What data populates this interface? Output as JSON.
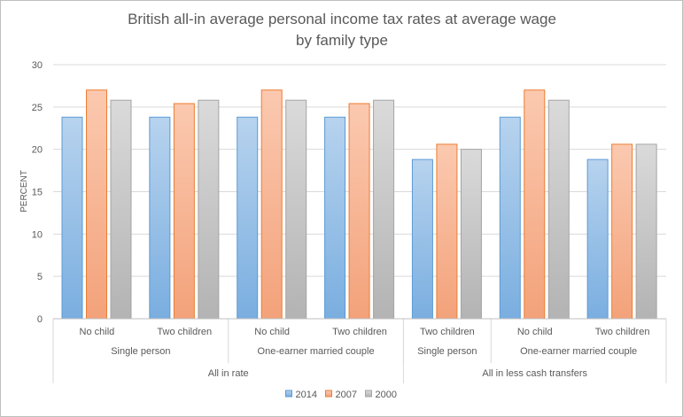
{
  "chart_data": {
    "type": "bar",
    "title": "British all-in average personal income tax rates at average wage",
    "subtitle": "by family type",
    "xlabel": "",
    "ylabel": "PERCENT",
    "ylim": [
      0,
      30
    ],
    "yticks": [
      0,
      5,
      10,
      15,
      20,
      25,
      30
    ],
    "grid": true,
    "legend_position": "bottom",
    "categories": [
      "No child",
      "Two children",
      "No child",
      "Two children",
      "Two children",
      "No child",
      "Two children"
    ],
    "category_groups": [
      {
        "label": "Single person",
        "span": 2
      },
      {
        "label": "One-earner married couple",
        "span": 2
      },
      {
        "label": "Single person",
        "span": 1
      },
      {
        "label": "One-earner married couple",
        "span": 2
      }
    ],
    "category_supergroups": [
      {
        "label": "All in rate",
        "span": 4
      },
      {
        "label": "All in less cash transfers",
        "span": 3
      }
    ],
    "series": [
      {
        "name": "2014",
        "color": "#9dc3e6",
        "values": [
          23.8,
          23.8,
          23.8,
          23.8,
          18.8,
          23.8,
          18.8
        ]
      },
      {
        "name": "2007",
        "color": "#f8b99b",
        "values": [
          27.0,
          25.4,
          27.0,
          25.4,
          20.6,
          27.0,
          20.6
        ]
      },
      {
        "name": "2000",
        "color": "#c9c9c9",
        "values": [
          25.8,
          25.8,
          25.8,
          25.8,
          20.0,
          25.8,
          20.6
        ]
      }
    ]
  },
  "colors": {
    "border_2014": "#5b9bd5",
    "border_2007": "#ed7d31",
    "border_2000": "#a5a5a5",
    "grid": "#d9d9d9",
    "text": "#595959"
  }
}
